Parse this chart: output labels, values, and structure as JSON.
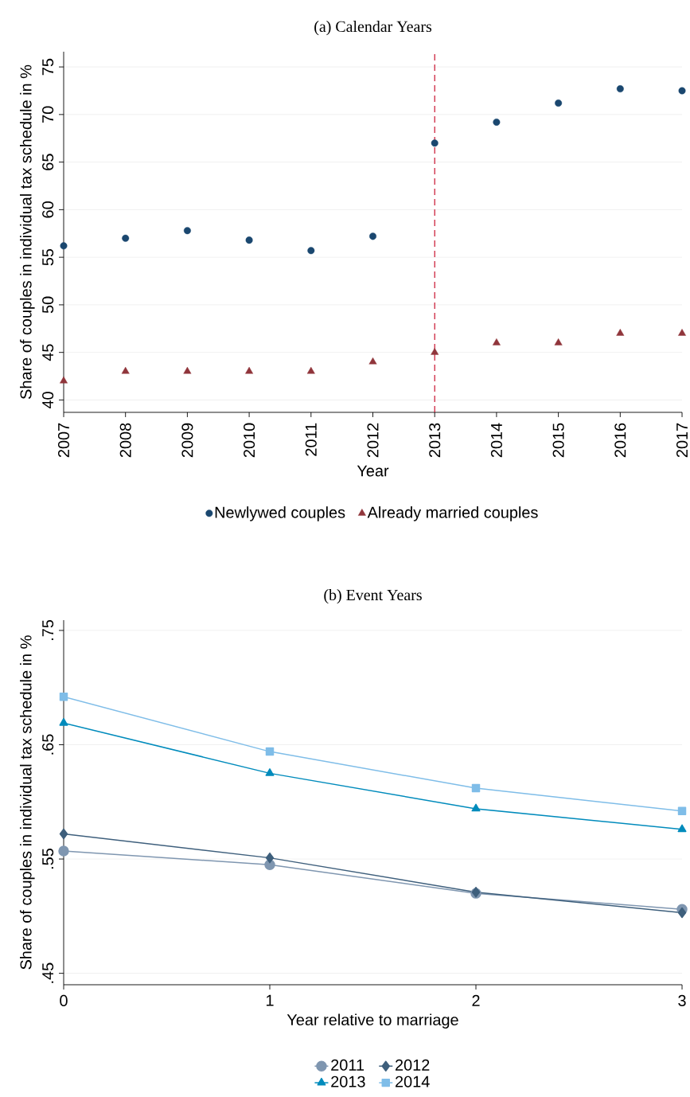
{
  "chart_data": [
    {
      "type": "scatter",
      "title": "(a) Calendar Years",
      "xlabel": "Year",
      "ylabel": "Share of couples in individual tax schedule in %",
      "x": [
        2007,
        2008,
        2009,
        2010,
        2011,
        2012,
        2013,
        2014,
        2015,
        2016,
        2017
      ],
      "series": [
        {
          "name": "Newlywed couples",
          "color": "#1a476f",
          "marker": "circle",
          "values": [
            56.2,
            57.0,
            57.8,
            56.8,
            55.7,
            57.2,
            67.0,
            69.2,
            71.2,
            72.7,
            72.5
          ]
        },
        {
          "name": "Already married couples",
          "color": "#90353b",
          "marker": "triangle",
          "values": [
            42,
            43,
            43,
            43,
            43,
            44,
            45,
            46,
            46,
            47,
            47
          ]
        }
      ],
      "xlim": [
        2007,
        2017
      ],
      "ylim": [
        38.7,
        76.6
      ],
      "xticks": [
        2007,
        2008,
        2009,
        2010,
        2011,
        2012,
        2013,
        2014,
        2015,
        2016,
        2017
      ],
      "yticks": [
        40,
        45,
        50,
        55,
        60,
        65,
        70,
        75
      ],
      "ref_lines": [
        {
          "axis": "x",
          "value": 2013,
          "color": "#c8102e",
          "line_style": "dashed"
        }
      ],
      "grid": "y",
      "legend": "bottom"
    },
    {
      "type": "line",
      "title": "(b) Event Years",
      "xlabel": "Year relative to marriage",
      "ylabel": "Share of couples in individual tax schedule in %",
      "x": [
        0,
        1,
        2,
        3
      ],
      "series": [
        {
          "name": "2011",
          "color": "#7f96b0",
          "marker": "circle",
          "values": [
            0.557,
            0.545,
            0.52,
            0.506
          ]
        },
        {
          "name": "2012",
          "color": "#3e5f7c",
          "marker": "diamond",
          "values": [
            0.572,
            0.551,
            0.521,
            0.503
          ]
        },
        {
          "name": "2013",
          "color": "#008bbc",
          "marker": "triangle",
          "values": [
            0.669,
            0.625,
            0.594,
            0.576
          ]
        },
        {
          "name": "2014",
          "color": "#7fbde8",
          "marker": "square",
          "values": [
            0.692,
            0.644,
            0.612,
            0.592
          ]
        }
      ],
      "xlim": [
        0,
        3
      ],
      "ylim": [
        0.44,
        0.759
      ],
      "xticks": [
        0,
        1,
        2,
        3
      ],
      "yticks": [
        {
          "value": 0.45,
          "label": ".45"
        },
        {
          "value": 0.55,
          "label": ".55"
        },
        {
          "value": 0.65,
          "label": ".65"
        },
        {
          "value": 0.75,
          "label": ".75"
        }
      ],
      "grid": "y",
      "legend": "bottom",
      "line_style": "solid"
    }
  ]
}
